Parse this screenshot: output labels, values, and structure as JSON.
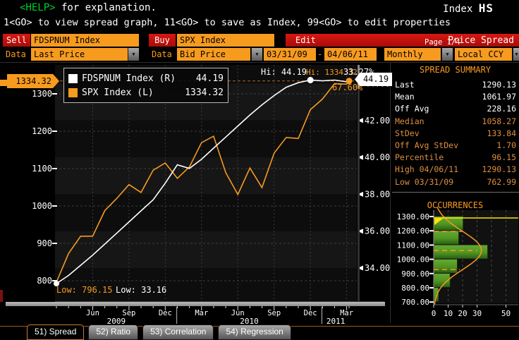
{
  "colors": {
    "accent_orange": "#f79b1f",
    "red": "#c00d0d",
    "help_green": "#00d02a",
    "bar_green": "#4f9621",
    "yellow": "#ffe400",
    "white": "#ffffff",
    "muted_orange": "#de8f3f"
  },
  "header": {
    "help": "<HELP>",
    "help_rest": " for explanation.",
    "index_label": "Index",
    "index_code": "HS",
    "line2": "1<GO> to view spread graph, 11<GO> to save as Index, 99<GO> to edit properties"
  },
  "toolbar": {
    "sell_label": "Sell",
    "sell_value": "FDSPNUM Index",
    "buy_label": "Buy",
    "buy_value": "SPX Index",
    "edit_label": "Edit",
    "page_label": "Page 1/4",
    "title": "Price Spread",
    "data_label_1": "Data",
    "field_1": "Last Price",
    "data_label_2": "Data",
    "field_2": "Bid Price",
    "date_from": "03/31/09",
    "date_sep": "-",
    "date_to": "04/06/11",
    "period": "Monthly",
    "currency": "Local CCY"
  },
  "legend": {
    "series": [
      {
        "label": "FDSPNUM Index (R)",
        "value": "44.19",
        "color": "#ffffff"
      },
      {
        "label": "SPX Index (L)",
        "value": "1334.32",
        "color": "#f79b1f"
      }
    ]
  },
  "annotations": {
    "hi_white": "Hi: 44.19",
    "hi_orange": "Hi: 1334.32",
    "pct_white": "33.27%",
    "pct_orange": "67.60%",
    "low_orange": "Low: 796.15",
    "low_white": "Low: 33.16",
    "left_tag": "1334.32",
    "right_tag": "44.19"
  },
  "chart_data": [
    {
      "type": "line",
      "title": "Price Spread chart",
      "x_start": "03/31/09",
      "x_end": "04/06/11",
      "x_unit": "month",
      "grid": true,
      "left_axis": {
        "ticks": [
          800,
          900,
          1000,
          1100,
          1200,
          1300
        ],
        "range": [
          741,
          1400
        ]
      },
      "right_axis": {
        "ticks": [
          34,
          36,
          38,
          40,
          42,
          44
        ],
        "tick_labels": [
          "34.00",
          "36.00",
          "38.00",
          "40.00",
          "42.00",
          "44.00"
        ],
        "range": [
          33,
          45.6
        ]
      },
      "x_ticks": [
        {
          "label": "Jun",
          "i": 3
        },
        {
          "label": "Sep",
          "i": 6
        },
        {
          "label": "Dec",
          "i": 9
        },
        {
          "label": "Mar",
          "i": 12
        },
        {
          "label": "Jun",
          "i": 15
        },
        {
          "label": "Sep",
          "i": 18
        },
        {
          "label": "Dec",
          "i": 21
        },
        {
          "label": "Mar",
          "i": 24
        }
      ],
      "years": [
        {
          "label": "2009",
          "from": 0,
          "to": 9.9
        },
        {
          "label": "2010",
          "from": 10,
          "to": 21.9
        },
        {
          "label": "2011",
          "from": 22,
          "to": 25
        }
      ],
      "year_dividers": [
        9.95,
        21.95
      ],
      "hi_line_value": 1334.32,
      "series": [
        {
          "name": "FDSPNUM Index",
          "axis": "right",
          "color": "#ffffff",
          "last": 44.19,
          "hi": 44.19,
          "low": 33.16,
          "values": [
            33.16,
            33.6,
            34.15,
            34.7,
            35.3,
            35.9,
            36.5,
            37.1,
            37.7,
            38.6,
            39.6,
            39.4,
            39.9,
            40.5,
            41.1,
            41.7,
            42.3,
            42.85,
            43.35,
            43.8,
            44.05,
            44.19,
            44.15,
            44.19,
            44.1,
            44.19
          ]
        },
        {
          "name": "SPX Index",
          "axis": "left",
          "color": "#f79b1f",
          "last": 1334.32,
          "hi": 1334.32,
          "low": 796.15,
          "values": [
            796.15,
            872.81,
            919.14,
            919.32,
            987.48,
            1020.62,
            1057.08,
            1036.19,
            1095.63,
            1115.1,
            1073.87,
            1104.49,
            1169.43,
            1186.69,
            1089.41,
            1030.71,
            1101.6,
            1049.33,
            1141.2,
            1183.26,
            1180.55,
            1257.64,
            1286.12,
            1327.22,
            1325.83,
            1334.32
          ]
        }
      ],
      "markers": [
        {
          "series": 0,
          "i": 21,
          "r": 4.5
        },
        {
          "series": 1,
          "i": 25,
          "r": 4.5
        },
        {
          "series": 0,
          "i": 0,
          "r": 4
        }
      ]
    },
    {
      "type": "bar",
      "orientation": "horizontal",
      "title": "OCCURRENCES",
      "ylabel_ticks": [
        "1300.00",
        "1200.00",
        "1100.00",
        "1000.00",
        "900.00",
        "800.00",
        "700.00"
      ],
      "y_ticks": [
        1300,
        1200,
        1100,
        1000,
        900,
        800,
        700
      ],
      "x_tick_labels": [
        "0",
        "10",
        "20",
        "30",
        "50"
      ],
      "x_tick_vals": [
        0,
        10,
        20,
        30,
        50
      ],
      "grid_x": [
        10,
        20,
        30,
        40,
        50
      ],
      "buckets": [
        {
          "from": 1200,
          "to": 1300,
          "count": 20
        },
        {
          "from": 1100,
          "to": 1200,
          "count": 17
        },
        {
          "from": 1000,
          "to": 1100,
          "count": 37
        },
        {
          "from": 900,
          "to": 1000,
          "count": 16
        },
        {
          "from": 800,
          "to": 900,
          "count": 11
        },
        {
          "from": 700,
          "to": 800,
          "count": 3
        }
      ],
      "curve": {
        "mean": 1062,
        "sigma": 134,
        "peak": 33,
        "color": "#f79b1f"
      },
      "mean_markers": [
        {
          "value": 1196,
          "len": 20
        },
        {
          "value": 1062,
          "len": 30
        },
        {
          "value": 928,
          "len": 18
        }
      ],
      "last_line": {
        "value": 1290,
        "color": "#ffe400"
      }
    }
  ],
  "summary": {
    "title": "SPREAD SUMMARY",
    "rows": [
      {
        "label": "Last",
        "value": "1290.13",
        "tone": "white"
      },
      {
        "label": "Mean",
        "value": "1061.97",
        "tone": "white"
      },
      {
        "label": "Off Avg",
        "value": "228.16",
        "tone": "white"
      },
      {
        "label": "Median",
        "value": "1058.27",
        "tone": "orange"
      },
      {
        "label": "StDev",
        "value": "133.84",
        "tone": "orange"
      },
      {
        "label": "Off Avg StDev",
        "value": "1.70",
        "tone": "orange"
      },
      {
        "label": "Percentile",
        "value": "96.15",
        "tone": "orange"
      },
      {
        "label": "High 04/06/11",
        "value": "1290.13",
        "tone": "orange"
      },
      {
        "label": "Low 03/31/09",
        "value": "762.99",
        "tone": "orange"
      }
    ]
  },
  "occurrences": {
    "title": "OCCURRENCES"
  },
  "tabs": [
    {
      "label": "51) Spread",
      "active": true
    },
    {
      "label": "52) Ratio",
      "active": false
    },
    {
      "label": "53) Correlation",
      "active": false
    },
    {
      "label": "54) Regression",
      "active": false
    }
  ]
}
